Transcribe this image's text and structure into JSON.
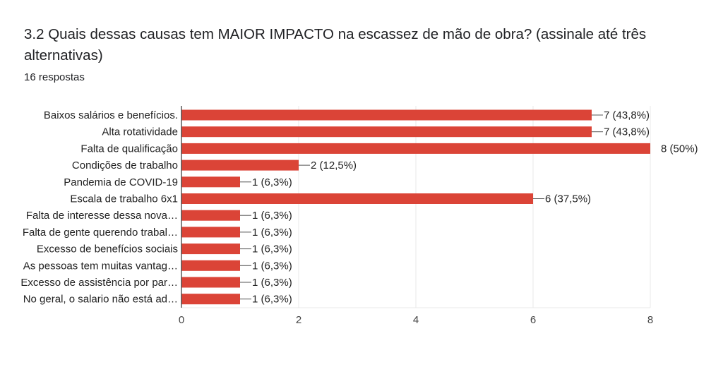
{
  "question": {
    "title": "3.2 Quais dessas causas tem MAIOR IMPACTO na escassez de mão de obra?  (assinale até três alternativas)",
    "responses": "16 respostas"
  },
  "chart_data": {
    "type": "bar",
    "orientation": "horizontal",
    "categories": [
      "Baixos salários e benefícios.",
      "Alta rotatividade",
      "Falta de qualificação",
      "Condições de trabalho",
      "Pandemia de COVID-19",
      "Escala de trabalho 6x1",
      "Falta de interesse dessa nova…",
      "Falta de gente querendo trabal…",
      "Excesso de benefícios sociais",
      "As pessoas tem muitas vantag…",
      "Excesso de assistência por par…",
      "No geral, o salario não está ad…"
    ],
    "values": [
      7,
      7,
      8,
      2,
      1,
      6,
      1,
      1,
      1,
      1,
      1,
      1
    ],
    "data_labels": [
      "7 (43,8%)",
      "7 (43,8%)",
      "8 (50%)",
      "2 (12,5%)",
      "1 (6,3%)",
      "6 (37,5%)",
      "1 (6,3%)",
      "1 (6,3%)",
      "1 (6,3%)",
      "1 (6,3%)",
      "1 (6,3%)",
      "1 (6,3%)"
    ],
    "xlim": [
      0,
      8
    ],
    "xticks": [
      0,
      2,
      4,
      6,
      8
    ],
    "grid": true,
    "bar_color": "#db4437"
  }
}
